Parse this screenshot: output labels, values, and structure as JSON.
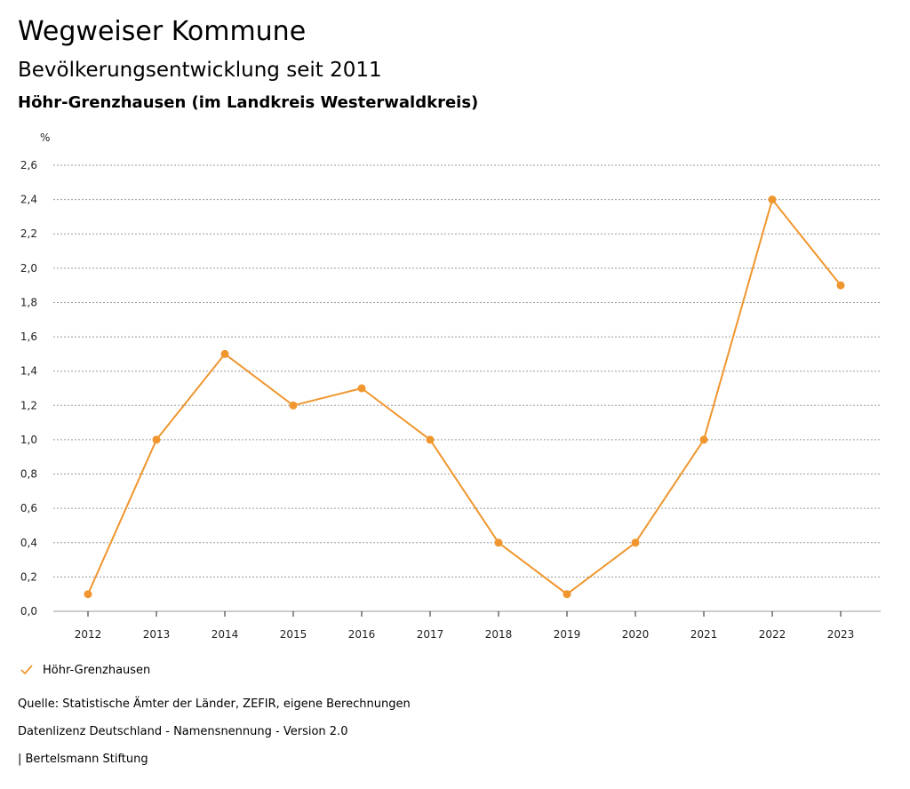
{
  "header": {
    "title": "Wegweiser Kommune",
    "subtitle": "Bevölkerungsentwicklung seit 2011",
    "region": "Höhr-Grenzhausen (im Landkreis Westerwaldkreis)"
  },
  "legend": {
    "label": "Höhr-Grenzhausen"
  },
  "footer": {
    "source": "Quelle: Statistische Ämter der Länder, ZEFIR, eigene Berechnungen",
    "license": "Datenlizenz Deutschland - Namensnennung - Version 2.0",
    "publisher": "| Bertelsmann Stiftung"
  },
  "colors": {
    "series": "#f0962e",
    "grid": "#9a9a9a",
    "axis": "#222222"
  },
  "chart_data": {
    "type": "line",
    "title": "Bevölkerungsentwicklung seit 2011",
    "ylabel": "%",
    "xlabel": "",
    "grid": true,
    "legend_position": "bottom-left",
    "ylim": [
      0,
      2.6
    ],
    "y_ticks": [
      "0,0",
      "0,2",
      "0,4",
      "0,6",
      "0,8",
      "1,0",
      "1,2",
      "1,4",
      "1,6",
      "1,8",
      "2,0",
      "2,2",
      "2,4",
      "2,6"
    ],
    "categories": [
      "2012",
      "2013",
      "2014",
      "2015",
      "2016",
      "2017",
      "2018",
      "2019",
      "2020",
      "2021",
      "2022",
      "2023"
    ],
    "series": [
      {
        "name": "Höhr-Grenzhausen",
        "values": [
          0.1,
          1.0,
          1.5,
          1.2,
          1.3,
          1.0,
          0.4,
          0.1,
          0.4,
          1.0,
          2.4,
          1.9
        ]
      }
    ]
  }
}
